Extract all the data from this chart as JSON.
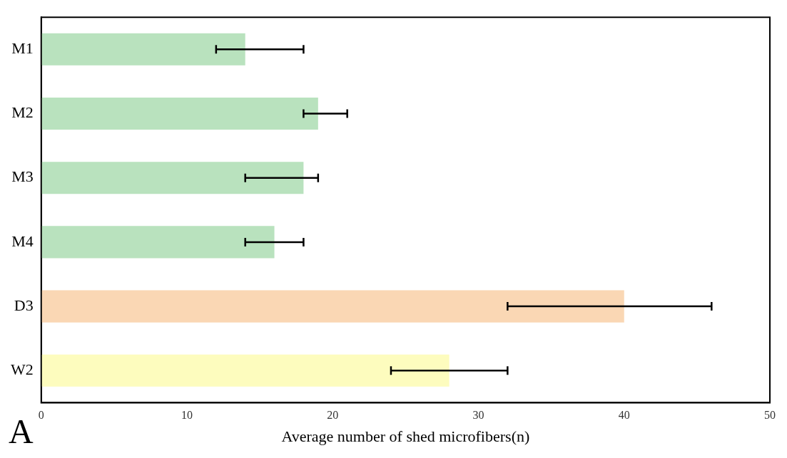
{
  "chart_data": {
    "type": "bar",
    "orientation": "horizontal",
    "xlabel": "Average number of shed microfibers(n)",
    "categories": [
      "M1",
      "M2",
      "M3",
      "M4",
      "D3",
      "W2"
    ],
    "values": [
      14,
      19,
      18,
      16,
      40,
      28
    ],
    "colors": [
      "#b9e2be",
      "#b9e2be",
      "#b9e2be",
      "#b9e2be",
      "#fad7b4",
      "#fdfcbe"
    ],
    "errors": [
      [
        12,
        18
      ],
      [
        18,
        21
      ],
      [
        14,
        19
      ],
      [
        14,
        18
      ],
      [
        32,
        46
      ],
      [
        24,
        32
      ]
    ],
    "xlim": [
      0,
      50
    ],
    "xticks": [
      0,
      10,
      20,
      30,
      40,
      50
    ],
    "grid": false,
    "annotations": [
      "A"
    ]
  }
}
